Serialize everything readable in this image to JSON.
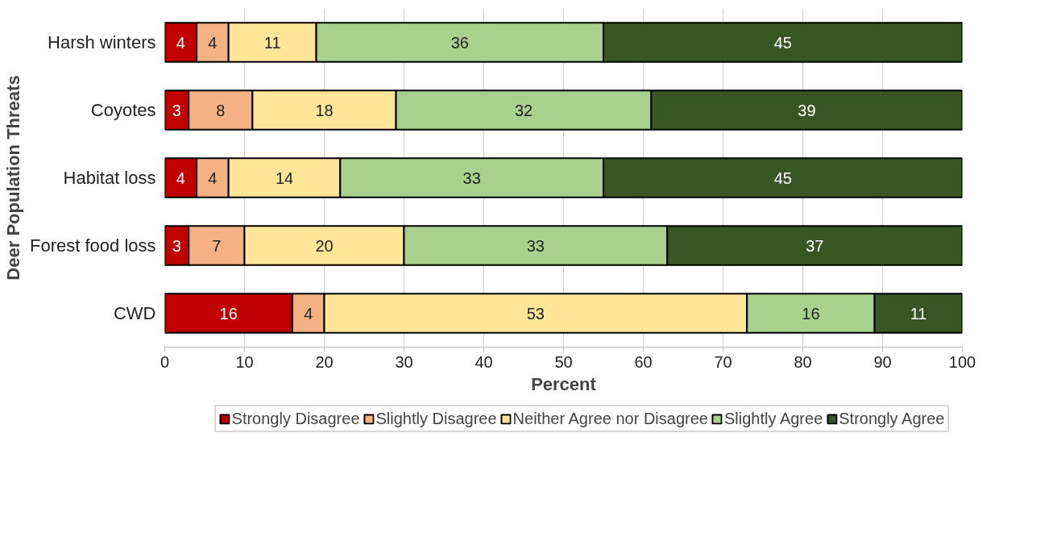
{
  "chart_data": {
    "type": "bar",
    "orientation": "horizontal",
    "stacked": true,
    "data_labels": true,
    "xlabel": "Percent",
    "ylabel": "Deer Population Threats",
    "categories": [
      "Harsh winters",
      "Coyotes",
      "Habitat loss",
      "Forest food loss",
      "CWD"
    ],
    "series": [
      {
        "name": "Strongly Disagree",
        "color": "#c00000",
        "values": [
          4,
          3,
          4,
          3,
          16
        ]
      },
      {
        "name": "Slightly Disagree",
        "color": "#f4b183",
        "values": [
          4,
          8,
          4,
          7,
          4
        ]
      },
      {
        "name": "Neither Agree nor Disagree",
        "color": "#ffe699",
        "values": [
          11,
          18,
          14,
          20,
          53
        ]
      },
      {
        "name": "Slightly Agree",
        "color": "#a9d18e",
        "values": [
          36,
          32,
          33,
          33,
          16
        ]
      },
      {
        "name": "Strongly Agree",
        "color": "#375623",
        "values": [
          45,
          39,
          45,
          37,
          11
        ]
      }
    ],
    "xlim": [
      0,
      100
    ],
    "xticks": [
      0,
      10,
      20,
      30,
      40,
      50,
      60,
      70,
      80,
      90,
      100
    ],
    "grid": "x",
    "legend": "bottom"
  }
}
